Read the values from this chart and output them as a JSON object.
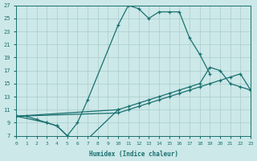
{
  "xlabel": "Humidex (Indice chaleur)",
  "bg_color": "#cce8e8",
  "grid_color": "#aacccc",
  "line_color": "#1a7070",
  "xlim": [
    0,
    23
  ],
  "ylim": [
    7,
    27
  ],
  "xtick_vals": [
    0,
    1,
    2,
    3,
    4,
    5,
    6,
    7,
    8,
    9,
    10,
    11,
    12,
    13,
    14,
    15,
    16,
    17,
    18,
    19,
    20,
    21,
    22,
    23
  ],
  "ytick_vals": [
    7,
    9,
    11,
    13,
    15,
    17,
    19,
    21,
    23,
    25,
    27
  ],
  "curves": [
    {
      "x": [
        0,
        3,
        4,
        5,
        6,
        7,
        10,
        11,
        12,
        13,
        14,
        15,
        16,
        17,
        18,
        19
      ],
      "y": [
        10,
        9,
        8.5,
        7,
        9,
        12.5,
        24,
        27,
        26.5,
        25,
        26,
        26,
        26,
        22,
        19.5,
        16.5
      ]
    },
    {
      "x": [
        0,
        1,
        2,
        3,
        4,
        5,
        6,
        7,
        10
      ],
      "y": [
        10,
        10,
        9.5,
        9,
        8.5,
        7,
        6.5,
        6.5,
        11
      ]
    },
    {
      "x": [
        0,
        10,
        11,
        12,
        13,
        14,
        15,
        16,
        17,
        18,
        19,
        20,
        21,
        22,
        23
      ],
      "y": [
        10,
        11,
        11.5,
        12,
        12.5,
        13,
        13.5,
        14,
        14.5,
        15,
        17.5,
        17,
        15,
        14.5,
        14
      ]
    },
    {
      "x": [
        0,
        10,
        11,
        12,
        13,
        14,
        15,
        16,
        17,
        18,
        19,
        20,
        21,
        22,
        23
      ],
      "y": [
        10,
        10.5,
        11,
        11.5,
        12,
        12.5,
        13,
        13.5,
        14,
        14.5,
        15,
        15.5,
        16,
        16.5,
        14
      ]
    }
  ]
}
